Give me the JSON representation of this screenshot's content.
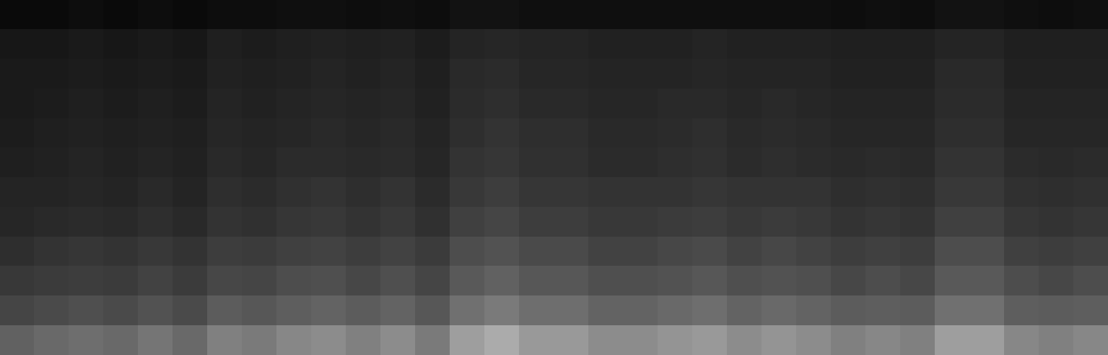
{
  "chart_data": {
    "type": "heatmap",
    "grid": false,
    "tick_labels": false,
    "zlim": [
      0,
      100
    ],
    "cells": [
      [
        4,
        4,
        5,
        4,
        5,
        4,
        5,
        5,
        6,
        6,
        5,
        6,
        5,
        7,
        7,
        6,
        6,
        6,
        6,
        6,
        6,
        6,
        6,
        6,
        5,
        6,
        5,
        7,
        7,
        6,
        5,
        6
      ],
      [
        9,
        9,
        10,
        9,
        10,
        9,
        12,
        11,
        12,
        13,
        12,
        13,
        11,
        14,
        15,
        14,
        14,
        13,
        13,
        13,
        14,
        13,
        13,
        13,
        12,
        12,
        12,
        14,
        14,
        12,
        12,
        12
      ],
      [
        10,
        10,
        11,
        10,
        11,
        10,
        13,
        12,
        13,
        14,
        13,
        14,
        12,
        16,
        17,
        15,
        15,
        14,
        14,
        14,
        15,
        14,
        14,
        14,
        13,
        13,
        13,
        16,
        16,
        13,
        13,
        13
      ],
      [
        10,
        11,
        12,
        11,
        12,
        11,
        14,
        13,
        14,
        15,
        14,
        15,
        13,
        17,
        18,
        16,
        16,
        15,
        15,
        16,
        16,
        15,
        16,
        15,
        14,
        14,
        14,
        17,
        17,
        14,
        14,
        14
      ],
      [
        11,
        12,
        13,
        12,
        13,
        12,
        15,
        14,
        15,
        16,
        15,
        16,
        14,
        18,
        20,
        18,
        18,
        16,
        16,
        17,
        18,
        16,
        17,
        16,
        15,
        15,
        15,
        18,
        18,
        15,
        15,
        15
      ],
      [
        12,
        13,
        14,
        13,
        14,
        13,
        16,
        15,
        17,
        17,
        16,
        17,
        15,
        20,
        21,
        19,
        19,
        17,
        17,
        18,
        19,
        17,
        18,
        17,
        16,
        17,
        16,
        20,
        20,
        17,
        16,
        17
      ],
      [
        14,
        14,
        15,
        14,
        16,
        14,
        18,
        17,
        19,
        20,
        18,
        20,
        17,
        22,
        24,
        21,
        21,
        20,
        20,
        20,
        21,
        20,
        20,
        20,
        18,
        19,
        18,
        22,
        22,
        19,
        18,
        19
      ],
      [
        15,
        16,
        17,
        16,
        18,
        16,
        20,
        19,
        21,
        22,
        20,
        22,
        19,
        25,
        27,
        24,
        24,
        22,
        22,
        23,
        24,
        22,
        23,
        22,
        20,
        21,
        20,
        25,
        25,
        21,
        20,
        21
      ],
      [
        18,
        20,
        21,
        20,
        22,
        20,
        24,
        23,
        25,
        26,
        24,
        26,
        23,
        30,
        32,
        29,
        29,
        26,
        26,
        28,
        29,
        26,
        28,
        26,
        24,
        25,
        24,
        30,
        30,
        25,
        24,
        25
      ],
      [
        22,
        23,
        24,
        23,
        26,
        23,
        28,
        27,
        30,
        31,
        28,
        31,
        27,
        35,
        38,
        34,
        34,
        31,
        31,
        32,
        34,
        31,
        32,
        31,
        28,
        30,
        28,
        35,
        35,
        30,
        28,
        30
      ],
      [
        27,
        29,
        31,
        29,
        32,
        29,
        36,
        34,
        37,
        39,
        36,
        39,
        34,
        44,
        48,
        43,
        43,
        39,
        39,
        41,
        43,
        39,
        41,
        39,
        36,
        37,
        36,
        44,
        44,
        37,
        36,
        37
      ],
      [
        38,
        41,
        43,
        41,
        46,
        41,
        50,
        48,
        53,
        55,
        50,
        55,
        48,
        62,
        67,
        60,
        60,
        55,
        55,
        58,
        60,
        55,
        58,
        55,
        50,
        53,
        50,
        62,
        62,
        53,
        50,
        53
      ]
    ]
  }
}
